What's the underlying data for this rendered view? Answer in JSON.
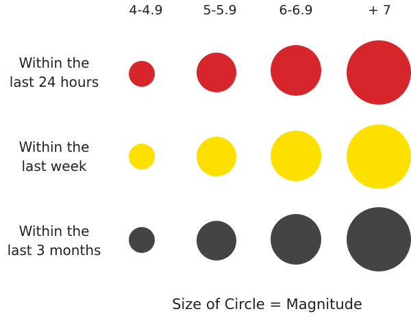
{
  "columns": [
    {
      "label": "4-4.9"
    },
    {
      "label": "5-5.9"
    },
    {
      "label": "6-6.9"
    },
    {
      "label": "+ 7"
    }
  ],
  "rows": [
    {
      "line1": "Within the",
      "line2": "last 24 hours",
      "color": "#d7262b"
    },
    {
      "line1": "Within the",
      "line2": "last week",
      "color": "#fde000"
    },
    {
      "line1": "Within the",
      "line2": "last 3 months",
      "color": "#444447"
    }
  ],
  "caption": "Size of Circle = Magnitude"
}
